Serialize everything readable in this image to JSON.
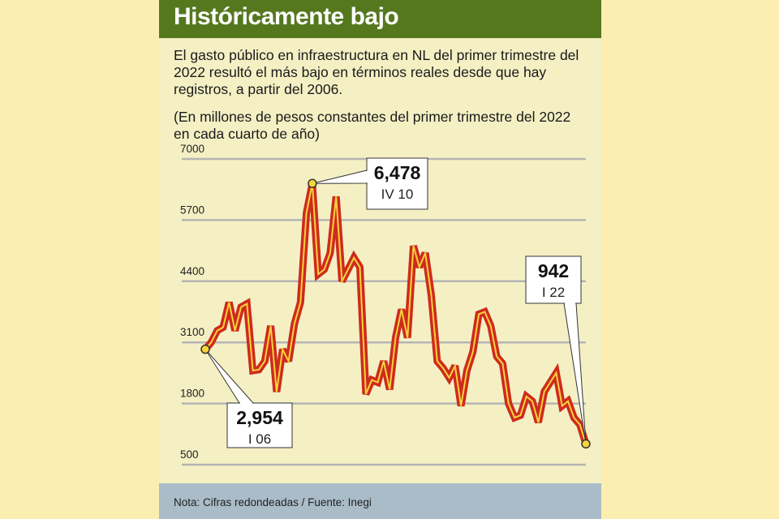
{
  "title": "Históricamente bajo",
  "description": "El gasto público en infraestructura en NL del primer trimestre del 2022 resultó el más bajo en términos reales desde que hay registros, a partir del 2006.",
  "units": "(En millones de pesos constantes del primer trimestre del 2022 en cada cuarto de año)",
  "note": "Nota: Cifras redondeadas / Fuente: Inegi",
  "colors": {
    "background": "#fbeeb0",
    "panel": "#f4f0c4",
    "title_bar": "#55781f",
    "line_outer": "#cf2a1d",
    "line_inner": "#f6d43a",
    "footer": "#a9bcc8",
    "grid": "#b5b5b5"
  },
  "chart_data": {
    "type": "line",
    "y_ticks": [
      "7000",
      "5700",
      "4400",
      "3100",
      "1800",
      "500"
    ],
    "ylim": [
      500,
      7000
    ],
    "grid": true,
    "series": [
      {
        "values": [
          2954,
          3100,
          3350,
          3420,
          3950,
          3350,
          3850,
          3920,
          2500,
          2520,
          2700,
          3450,
          2050,
          2950,
          2700,
          3500,
          3950,
          5850,
          6478,
          4550,
          4650,
          5000,
          6200,
          4400,
          4650,
          4900,
          4700,
          2000,
          2300,
          2250,
          2700,
          2100,
          3200,
          3800,
          3200,
          5150,
          4700,
          5000,
          4100,
          2700,
          2550,
          2350,
          2600,
          1750,
          2500,
          2900,
          3700,
          3750,
          3450,
          2800,
          2650,
          1800,
          1500,
          1550,
          1950,
          1850,
          1400,
          2050,
          2250,
          2450,
          1750,
          1850,
          1500,
          1350,
          942
        ]
      }
    ],
    "annotations": [
      {
        "value": "2,954",
        "label": "I 06"
      },
      {
        "value": "6,478",
        "label": "IV 10"
      },
      {
        "value": "942",
        "label": "I 22"
      }
    ]
  }
}
